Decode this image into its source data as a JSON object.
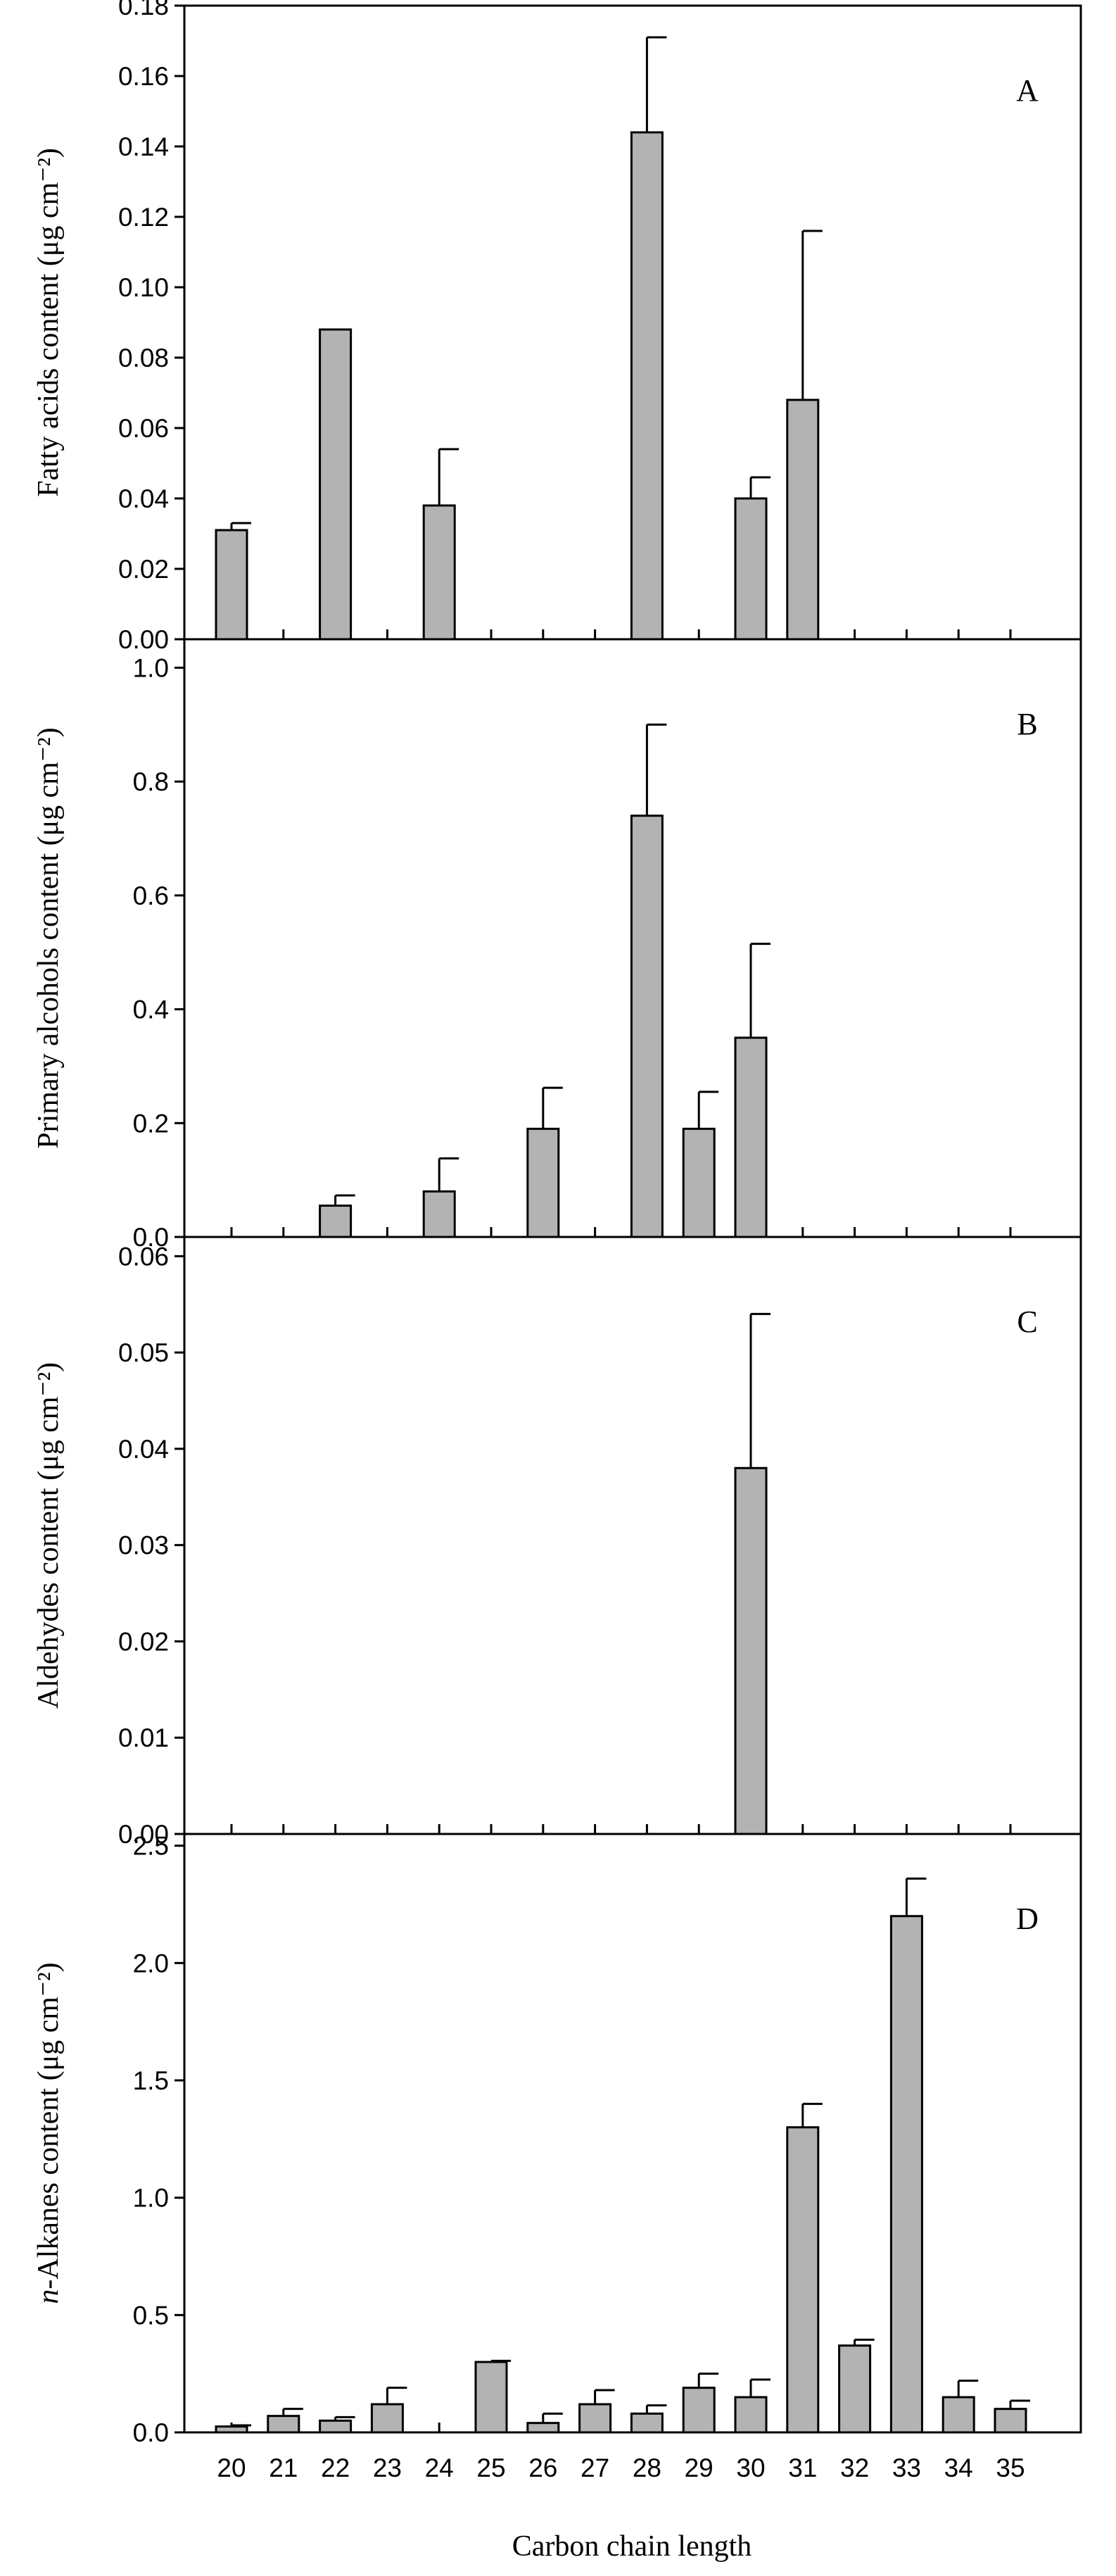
{
  "chart_data": {
    "type": "bar",
    "xlabel": "Carbon chain length",
    "categories": [
      "20",
      "21",
      "22",
      "23",
      "24",
      "25",
      "26",
      "27",
      "28",
      "29",
      "30",
      "31",
      "32",
      "33",
      "34",
      "35"
    ],
    "bar_color": "#b3b3b3",
    "panels": [
      {
        "letter": "A",
        "ylabel": "Fatty acids content (μg cm⁻²)",
        "ylim": [
          0,
          0.18
        ],
        "yticks": [
          "0.00",
          "0.02",
          "0.04",
          "0.06",
          "0.08",
          "0.10",
          "0.12",
          "0.14",
          "0.16",
          "0.18"
        ],
        "values": [
          0.031,
          null,
          0.088,
          null,
          0.038,
          null,
          null,
          null,
          0.144,
          null,
          0.04,
          0.068,
          null,
          null,
          null,
          null
        ],
        "errors": [
          0.002,
          null,
          0.0,
          null,
          0.016,
          null,
          null,
          null,
          0.027,
          null,
          0.006,
          0.048,
          null,
          null,
          null,
          null
        ]
      },
      {
        "letter": "B",
        "ylabel": "Primary alcohols content (μg cm⁻²)",
        "ylim": [
          0,
          1.05
        ],
        "yticks": [
          "0.0",
          "0.2",
          "0.4",
          "0.6",
          "0.8",
          "1.0"
        ],
        "values": [
          null,
          null,
          0.055,
          null,
          0.08,
          null,
          0.19,
          null,
          0.74,
          0.19,
          0.35,
          null,
          null,
          null,
          null,
          null
        ],
        "errors": [
          null,
          null,
          0.018,
          null,
          0.058,
          null,
          0.072,
          null,
          0.16,
          0.065,
          0.165,
          null,
          null,
          null,
          null,
          null
        ]
      },
      {
        "letter": "C",
        "ylabel": "Aldehydes content (μg cm⁻²)",
        "ylim": [
          0,
          0.062
        ],
        "yticks": [
          "0.00",
          "0.01",
          "0.02",
          "0.03",
          "0.04",
          "0.05",
          "0.06"
        ],
        "values": [
          null,
          null,
          null,
          null,
          null,
          null,
          null,
          null,
          null,
          null,
          0.038,
          null,
          null,
          null,
          null,
          null
        ],
        "errors": [
          null,
          null,
          null,
          null,
          null,
          null,
          null,
          null,
          null,
          null,
          0.016,
          null,
          null,
          null,
          null,
          null
        ]
      },
      {
        "letter": "D",
        "ylabel": "n-Alkanes content (μg cm⁻²)",
        "ylabel_italic_prefix": "n",
        "ylim": [
          0,
          2.55
        ],
        "yticks": [
          "0.0",
          "0.5",
          "1.0",
          "1.5",
          "2.0",
          "2.5"
        ],
        "values": [
          0.025,
          0.07,
          0.05,
          0.12,
          null,
          0.3,
          0.04,
          0.12,
          0.08,
          0.19,
          0.15,
          1.3,
          0.37,
          2.2,
          0.15,
          0.1
        ],
        "errors": [
          0.005,
          0.03,
          0.015,
          0.07,
          null,
          0.005,
          0.04,
          0.06,
          0.035,
          0.06,
          0.075,
          0.1,
          0.025,
          0.16,
          0.07,
          0.035
        ]
      }
    ]
  }
}
